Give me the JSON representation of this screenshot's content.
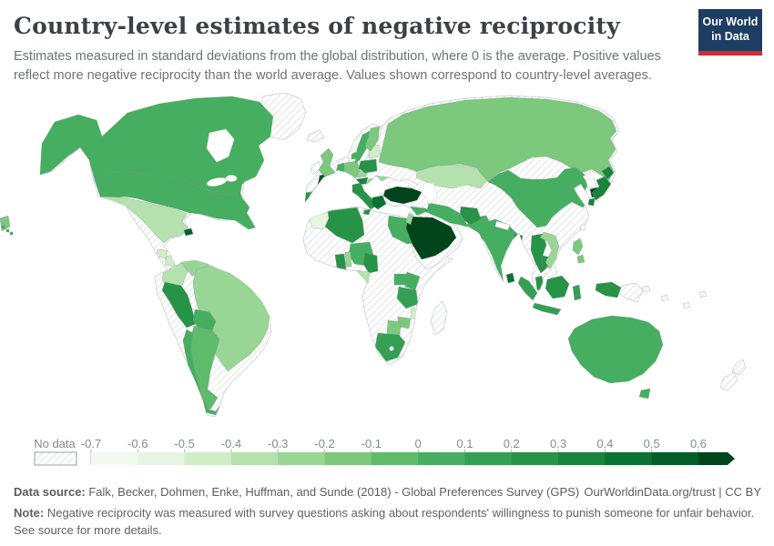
{
  "header": {
    "title": "Country-level estimates of negative reciprocity",
    "subtitle": "Estimates measured in standard deviations from the global distribution, where 0 is the average. Positive values reflect more negative reciprocity than the world average. Values shown correspond to country-level averages.",
    "logo": {
      "line1": "Our World",
      "line2": "in Data",
      "bg": "#1d3d63",
      "accent": "#d42b2f"
    }
  },
  "legend": {
    "no_data_label": "No data",
    "tick_labels": [
      "-0.7",
      "-0.6",
      "-0.5",
      "-0.4",
      "-0.3",
      "-0.2",
      "-0.1",
      "0",
      "0.1",
      "0.2",
      "0.3",
      "0.4",
      "0.5",
      "0.6"
    ],
    "colors": [
      "#f2faef",
      "#e6f5e1",
      "#d0edc8",
      "#b5e1ae",
      "#99d595",
      "#7cc87c",
      "#5fba6c",
      "#46ae60",
      "#359f53",
      "#279346",
      "#18843c",
      "#0a7232",
      "#015e28",
      "#00441b"
    ],
    "tick_color": "#b2b6b8",
    "swatch_border": "#9aa0a3"
  },
  "map": {
    "ocean_color": "#ffffff",
    "bin_ranges": [
      "-0.7 to -0.6",
      "-0.6 to -0.5",
      "-0.5 to -0.4",
      "-0.4 to -0.3",
      "-0.3 to -0.2",
      "-0.2 to -0.1",
      "-0.1 to 0",
      "0 to 0.1",
      "0.1 to 0.2",
      "0.2 to 0.3",
      "0.3 to 0.4",
      "0.4 to 0.5",
      "0.5 to 0.6",
      "more than 0.6"
    ],
    "regions": [
      {
        "id": "na-base",
        "name": "North America (no data areas)",
        "bin": "no-data"
      },
      {
        "id": "greenland",
        "name": "Greenland",
        "bin": "no-data"
      },
      {
        "id": "sa-base",
        "name": "South America (no data areas)",
        "bin": "no-data"
      },
      {
        "id": "africa-base",
        "name": "Africa (no data areas)",
        "bin": "no-data"
      },
      {
        "id": "madagascar",
        "name": "Madagascar",
        "bin": "no-data"
      },
      {
        "id": "eurasia-base",
        "name": "Eurasia (no data areas)",
        "bin": "no-data"
      },
      {
        "id": "arabia-base",
        "name": "Arabian Peninsula (no data areas)",
        "bin": "no-data"
      },
      {
        "id": "scandinavia-base",
        "name": "Norway",
        "bin": "no-data"
      },
      {
        "id": "ireland",
        "name": "Ireland",
        "bin": "no-data"
      },
      {
        "id": "iceland",
        "name": "Iceland",
        "bin": "no-data"
      },
      {
        "id": "cuba",
        "name": "Cuba",
        "bin": "no-data"
      },
      {
        "id": "png-east",
        "name": "Papua New Guinea",
        "bin": "no-data"
      },
      {
        "id": "new-zealand",
        "name": "New Zealand",
        "bin": "no-data"
      },
      {
        "id": "pacific-islands",
        "name": "Pacific islands",
        "bin": "no-data"
      },
      {
        "id": "canada",
        "name": "Canada",
        "bin": 8
      },
      {
        "id": "usa",
        "name": "United States",
        "bin": 8
      },
      {
        "id": "hawaii",
        "name": "Hawaii (United States)",
        "bin": 8
      },
      {
        "id": "mexico",
        "name": "Mexico",
        "bin": 4
      },
      {
        "id": "guatemala",
        "name": "Guatemala",
        "bin": 3
      },
      {
        "id": "nicaragua",
        "name": "Nicaragua / Costa Rica",
        "bin": 3
      },
      {
        "id": "panama",
        "name": "Panama",
        "bin": 5
      },
      {
        "id": "haiti",
        "name": "Haiti",
        "bin": 13
      },
      {
        "id": "colombia",
        "name": "Colombia",
        "bin": 4
      },
      {
        "id": "venezuela",
        "name": "Venezuela",
        "bin": 5
      },
      {
        "id": "suriname",
        "name": "Suriname",
        "bin": 12
      },
      {
        "id": "brazil",
        "name": "Brazil",
        "bin": 5
      },
      {
        "id": "peru",
        "name": "Peru",
        "bin": 10
      },
      {
        "id": "bolivia",
        "name": "Bolivia",
        "bin": 8
      },
      {
        "id": "argentina",
        "name": "Argentina",
        "bin": 7
      },
      {
        "id": "chile",
        "name": "Chile",
        "bin": 8
      },
      {
        "id": "uk",
        "name": "United Kingdom",
        "bin": 6
      },
      {
        "id": "france",
        "name": "France",
        "bin": 13
      },
      {
        "id": "spain",
        "name": "Spain",
        "bin": 8
      },
      {
        "id": "portugal",
        "name": "Portugal",
        "bin": 10
      },
      {
        "id": "germany",
        "name": "Germany",
        "bin": 6
      },
      {
        "id": "benelux",
        "name": "Netherlands / Belgium",
        "bin": 8
      },
      {
        "id": "switzerland",
        "name": "Switzerland",
        "bin": 3
      },
      {
        "id": "austria",
        "name": "Austria",
        "bin": 11
      },
      {
        "id": "czechia",
        "name": "Czechia",
        "bin": 5
      },
      {
        "id": "poland",
        "name": "Poland",
        "bin": 10
      },
      {
        "id": "hungary",
        "name": "Hungary",
        "bin": 5
      },
      {
        "id": "romania",
        "name": "Romania",
        "bin": 5
      },
      {
        "id": "balkans",
        "name": "Croatia / Bosnia / Serbia",
        "bin": 12
      },
      {
        "id": "baltics",
        "name": "Baltic states",
        "bin": 3
      },
      {
        "id": "denmark",
        "name": "Denmark",
        "bin": 8
      },
      {
        "id": "sweden",
        "name": "Sweden",
        "bin": 8
      },
      {
        "id": "finland",
        "name": "Finland",
        "bin": 6
      },
      {
        "id": "italy",
        "name": "Italy",
        "bin": 10
      },
      {
        "id": "greece",
        "name": "Greece",
        "bin": 12
      },
      {
        "id": "turkey",
        "name": "Turkey",
        "bin": 14
      },
      {
        "id": "russia",
        "name": "Russia",
        "bin": 6
      },
      {
        "id": "chukotka",
        "name": "Russia (far east fragment)",
        "bin": 6
      },
      {
        "id": "kazakhstan",
        "name": "Kazakhstan",
        "bin": 4
      },
      {
        "id": "iraq",
        "name": "Iraq",
        "bin": 8
      },
      {
        "id": "iran",
        "name": "Iran",
        "bin": 8
      },
      {
        "id": "jordan",
        "name": "Jordan / Israel",
        "bin": 5
      },
      {
        "id": "saudi-arabia",
        "name": "Saudi Arabia",
        "bin": 14
      },
      {
        "id": "afghanistan",
        "name": "Afghanistan",
        "bin": 10
      },
      {
        "id": "pakistan",
        "name": "Pakistan",
        "bin": 8
      },
      {
        "id": "india",
        "name": "India",
        "bin": 8
      },
      {
        "id": "nepal",
        "name": "Nepal",
        "bin": "none"
      },
      {
        "id": "bangladesh",
        "name": "Bangladesh",
        "bin": 10
      },
      {
        "id": "sri-lanka",
        "name": "Sri Lanka",
        "bin": 12
      },
      {
        "id": "china",
        "name": "China",
        "bin": 8
      },
      {
        "id": "north-korea",
        "name": "North Korea",
        "bin": "none"
      },
      {
        "id": "south-korea",
        "name": "South Korea",
        "bin": 14
      },
      {
        "id": "japan",
        "name": "Japan",
        "bin": 11
      },
      {
        "id": "taiwan",
        "name": "Taiwan",
        "bin": "none"
      },
      {
        "id": "philippines",
        "name": "Philippines",
        "bin": 6
      },
      {
        "id": "vietnam",
        "name": "Vietnam",
        "bin": 5
      },
      {
        "id": "thailand",
        "name": "Thailand",
        "bin": 10
      },
      {
        "id": "cambodia",
        "name": "Cambodia",
        "bin": 10
      },
      {
        "id": "malaysia",
        "name": "Malaysia (peninsula)",
        "bin": 10
      },
      {
        "id": "sumatra",
        "name": "Indonesia (Sumatra)",
        "bin": 9
      },
      {
        "id": "java",
        "name": "Indonesia (Java)",
        "bin": 9
      },
      {
        "id": "borneo",
        "name": "Indonesia / Malaysia (Borneo)",
        "bin": 10
      },
      {
        "id": "sulawesi",
        "name": "Indonesia (Sulawesi)",
        "bin": 9
      },
      {
        "id": "west-new-guinea",
        "name": "Indonesia (Papua)",
        "bin": 10
      },
      {
        "id": "australia",
        "name": "Australia",
        "bin": 8
      },
      {
        "id": "tasmania",
        "name": "Australia (Tasmania)",
        "bin": 8
      },
      {
        "id": "morocco",
        "name": "Morocco",
        "bin": 2
      },
      {
        "id": "algeria",
        "name": "Algeria",
        "bin": 10
      },
      {
        "id": "egypt",
        "name": "Egypt",
        "bin": 8
      },
      {
        "id": "nigeria",
        "name": "Nigeria",
        "bin": 8
      },
      {
        "id": "ghana",
        "name": "Ghana",
        "bin": 10
      },
      {
        "id": "benin-togo",
        "name": "Benin / Togo",
        "bin": 5
      },
      {
        "id": "cameroon",
        "name": "Cameroon",
        "bin": 10
      },
      {
        "id": "gabon",
        "name": "Gabon",
        "bin": 4
      },
      {
        "id": "uganda",
        "name": "Uganda",
        "bin": 8
      },
      {
        "id": "kenya",
        "name": "Kenya",
        "bin": 8
      },
      {
        "id": "tanzania",
        "name": "Tanzania",
        "bin": 9
      },
      {
        "id": "malawi",
        "name": "Malawi",
        "bin": 3
      },
      {
        "id": "zimbabwe",
        "name": "Zimbabwe",
        "bin": 6
      },
      {
        "id": "botswana",
        "name": "Botswana",
        "bin": 6
      },
      {
        "id": "south-africa",
        "name": "South Africa",
        "bin": 9
      },
      {
        "id": "lesotho",
        "name": "Lesotho",
        "bin": "none"
      }
    ]
  },
  "footer": {
    "data_source_label": "Data source:",
    "data_source": " Falk, Becker, Dohmen, Enke, Huffman, and Sunde (2018) - Global Preferences Survey (GPS)",
    "link": "OurWorldinData.org/trust | CC BY",
    "note_label": "Note:",
    "note": " Negative reciprocity was measured with survey questions asking about respondents' willingness to punish someone for unfair behavior. See source for more details."
  }
}
